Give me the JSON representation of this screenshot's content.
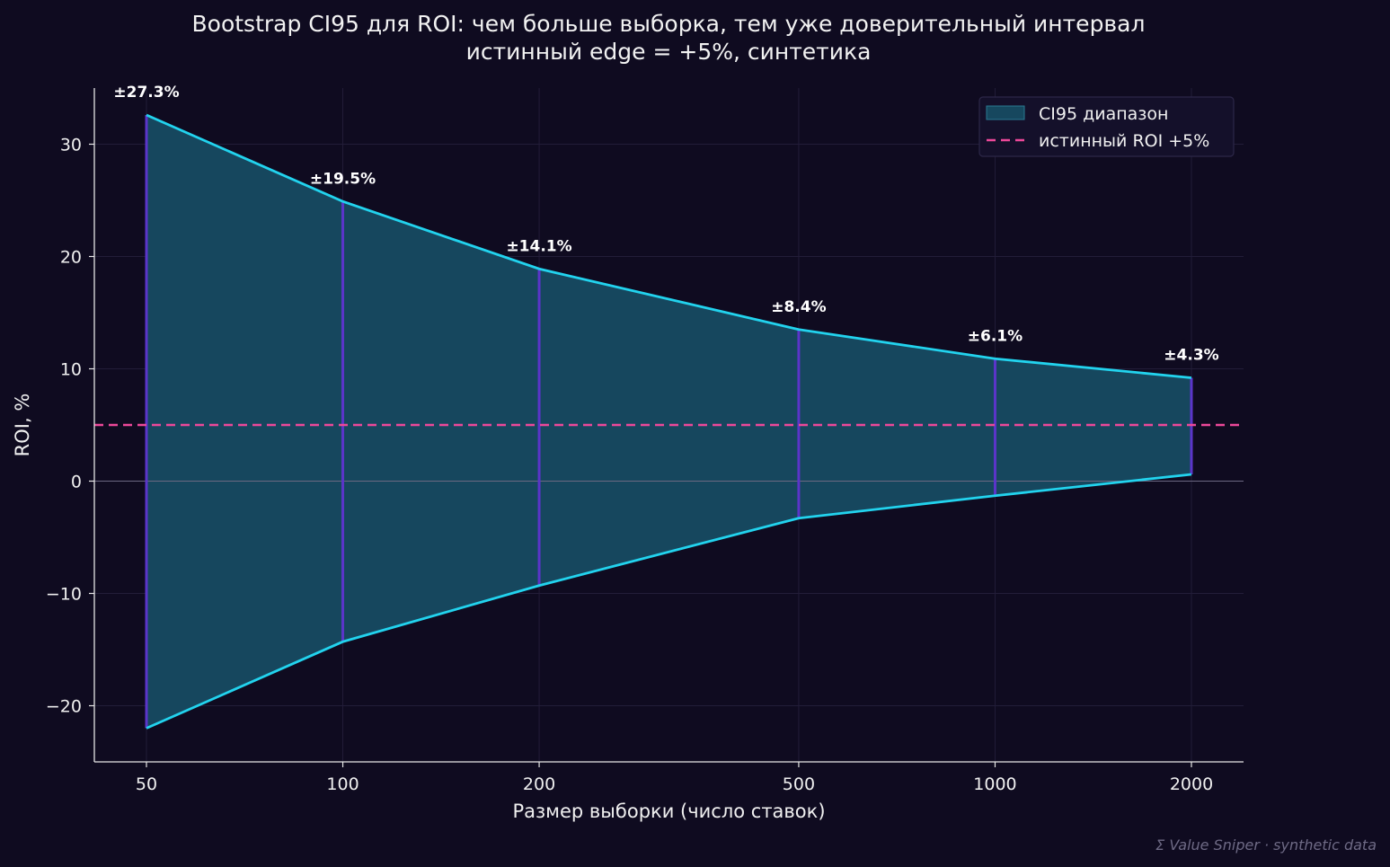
{
  "chart_data": {
    "type": "area",
    "title": "Bootstrap CI95 для ROI: чем больше выборка, тем уже доверительный интервал",
    "subtitle": "истинный edge = +5%, синтетика",
    "xlabel": "Размер выборки (число ставок)",
    "ylabel": "ROI, %",
    "x_scale": "log",
    "x": [
      50,
      100,
      200,
      500,
      1000,
      2000
    ],
    "x_tick_labels": [
      "50",
      "100",
      "200",
      "500",
      "1000",
      "2000"
    ],
    "ylim": [
      -25,
      35
    ],
    "y_ticks": [
      -20,
      -10,
      0,
      10,
      20,
      30
    ],
    "y_tick_labels": [
      "−20",
      "−10",
      "0",
      "10",
      "20",
      "30"
    ],
    "series": [
      {
        "name": "CI95 диапазон",
        "lower": [
          -22.0,
          -14.3,
          -9.3,
          -3.3,
          -1.3,
          0.6
        ],
        "upper": [
          32.6,
          24.9,
          18.9,
          13.5,
          10.9,
          9.2
        ],
        "color": "#22d3ee",
        "fill": "#16475e"
      },
      {
        "name": "истинный ROI +5%",
        "value": 5,
        "style": "dashed",
        "color": "#ec4899"
      }
    ],
    "data_labels": [
      "±27.3%",
      "±19.5%",
      "±14.1%",
      "±8.4%",
      "±6.1%",
      "±4.3%"
    ],
    "zero_line": true,
    "grid": true,
    "legend_position": "top-right",
    "colors": {
      "background": "#0f0b20",
      "ci_line": "#22d3ee",
      "ci_fill": "#16475e",
      "whisker": "#5b35c9",
      "true_roi": "#ec4899",
      "grid": "#221d38",
      "zero": "#6b6882"
    }
  },
  "watermark": "Σ Value Sniper · synthetic data"
}
